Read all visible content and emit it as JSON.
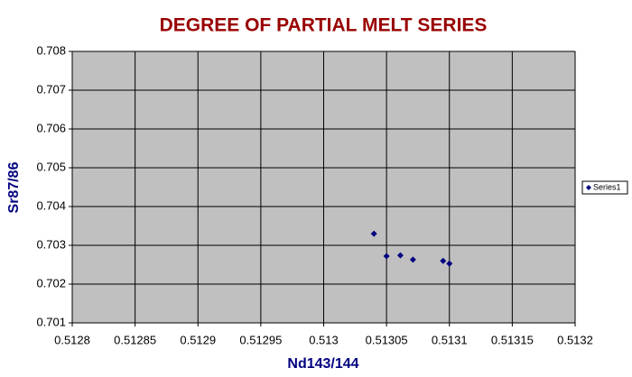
{
  "chart_data": {
    "type": "scatter",
    "title": "DEGREE OF PARTIAL MELT SERIES",
    "x_label": "Nd143/144",
    "y_label": "Sr87/86",
    "x": [
      0.51304,
      0.51305,
      0.513061,
      0.513071,
      0.513095,
      0.5131
    ],
    "series": [
      {
        "name": "Series1",
        "color": "#000080",
        "values": [
          0.7033,
          0.70272,
          0.70274,
          0.70263,
          0.7026,
          0.70253
        ]
      }
    ],
    "xlim": [
      0.5128,
      0.5132
    ],
    "xticks": [
      0.5128,
      0.51285,
      0.5129,
      0.51295,
      0.513,
      0.51305,
      0.5131,
      0.51315,
      0.5132
    ],
    "ylim": [
      0.701,
      0.708
    ],
    "yticks": [
      0.701,
      0.702,
      0.703,
      0.704,
      0.705,
      0.706,
      0.707,
      0.708
    ],
    "grid": true,
    "legend": "right",
    "plot_color": "#c0c0c0"
  }
}
